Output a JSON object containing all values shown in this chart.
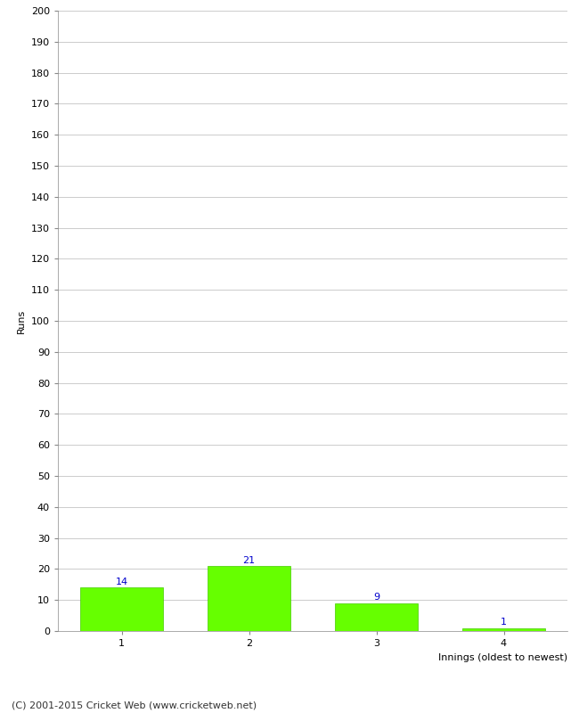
{
  "categories": [
    1,
    2,
    3,
    4
  ],
  "values": [
    14,
    21,
    9,
    1
  ],
  "bar_color": "#66ff00",
  "bar_edge_color": "#44cc00",
  "label_color": "#0000cc",
  "xlabel": "Innings (oldest to newest)",
  "ylabel": "Runs",
  "ylim": [
    0,
    200
  ],
  "yticks": [
    0,
    10,
    20,
    30,
    40,
    50,
    60,
    70,
    80,
    90,
    100,
    110,
    120,
    130,
    140,
    150,
    160,
    170,
    180,
    190,
    200
  ],
  "background_color": "#ffffff",
  "grid_color": "#cccccc",
  "footer": "(C) 2001-2015 Cricket Web (www.cricketweb.net)",
  "label_fontsize": 8,
  "axis_fontsize": 8,
  "footer_fontsize": 8,
  "ylabel_fontsize": 8,
  "xlabel_fontsize": 8
}
